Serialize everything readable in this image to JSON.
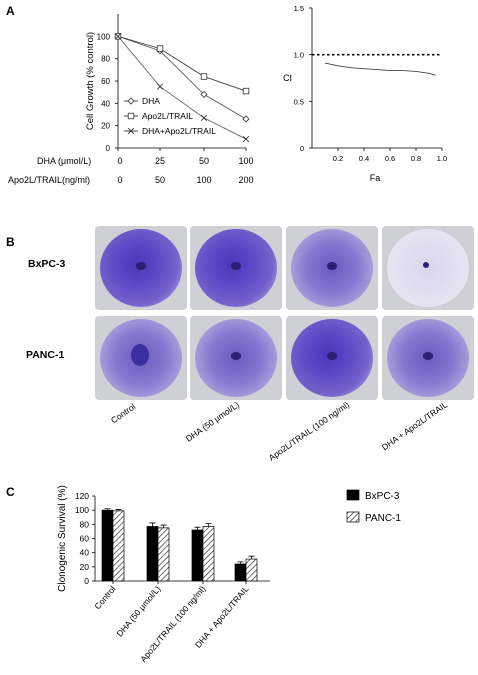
{
  "panels": {
    "a": "A",
    "b": "B",
    "c": "C"
  },
  "chart_data": [
    {
      "type": "line",
      "panel": "A",
      "ylabel": "Cell Growth (% control)",
      "yticks": [
        0,
        20,
        40,
        60,
        80,
        100
      ],
      "ylim": [
        0,
        120
      ],
      "x": [
        0,
        25,
        50,
        100
      ],
      "xaxis_rows": [
        {
          "label": "DHA (μmol/L)",
          "values": [
            "0",
            "25",
            "50",
            "100"
          ]
        },
        {
          "label": "Apo2L/TRAIL(ng/ml)",
          "values": [
            "0",
            "50",
            "100",
            "200"
          ]
        }
      ],
      "series": [
        {
          "name": "DHA",
          "marker": "diamond",
          "values": [
            100,
            87,
            48,
            26
          ]
        },
        {
          "name": "Apo2L/TRAIL",
          "marker": "square",
          "values": [
            100,
            89,
            64,
            51
          ]
        },
        {
          "name": "DHA+Apo2L/TRAIL",
          "marker": "x",
          "values": [
            100,
            55,
            27,
            8
          ]
        }
      ]
    },
    {
      "type": "line",
      "panel": "A",
      "xlabel": "Fa",
      "ylabel": "CI",
      "xlim": [
        0,
        1.0
      ],
      "ylim": [
        0,
        1.5
      ],
      "xticks": [
        "0.2",
        "0.4",
        "0.6",
        "0.8",
        "1.0"
      ],
      "yticks": [
        "0",
        "0.5",
        "1.0",
        "1.5"
      ],
      "reference_line": 1.0,
      "series": [
        {
          "x": [
            0.1,
            0.2,
            0.3,
            0.4,
            0.5,
            0.6,
            0.7,
            0.8,
            0.9,
            0.95
          ],
          "values": [
            0.91,
            0.88,
            0.86,
            0.85,
            0.84,
            0.83,
            0.83,
            0.82,
            0.8,
            0.78
          ]
        }
      ]
    },
    {
      "type": "bar",
      "panel": "C",
      "ylabel": "Clonogenic Survival (%)",
      "ylim": [
        0,
        120
      ],
      "yticks": [
        0,
        20,
        40,
        60,
        80,
        100,
        120
      ],
      "categories": [
        "Control",
        "DHA (50 μmol/L)",
        "Apo2L/TRAIL (100 ng/ml)",
        "DHA + Apo2L/TRAIL"
      ],
      "legend_position": "top-right",
      "series": [
        {
          "name": "BxPC-3",
          "color": "#000000",
          "values": [
            100,
            77,
            72,
            24
          ],
          "errors": [
            2,
            5,
            4,
            3
          ]
        },
        {
          "name": "PANC-1",
          "pattern": "diagonal-hatch",
          "values": [
            99,
            75,
            77,
            31
          ],
          "errors": [
            2,
            4,
            4,
            4
          ]
        }
      ]
    }
  ],
  "panel_b": {
    "rows": [
      "BxPC-3",
      "PANC-1"
    ],
    "columns": [
      "Control",
      "DHA (50 μmol/L)",
      "Apo2L/TRAIL (100 ng/ml)",
      "DHA + Apo2L/TRAIL"
    ]
  }
}
